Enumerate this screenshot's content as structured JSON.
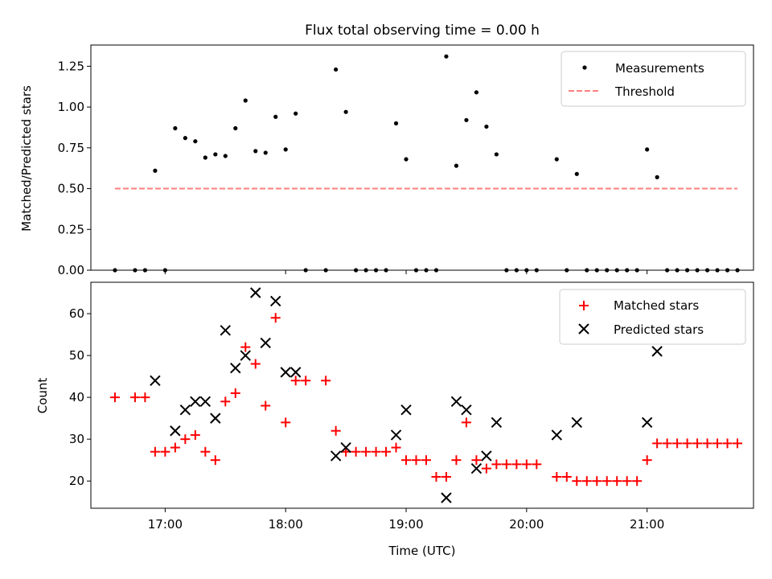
{
  "chart_data": [
    {
      "type": "scatter",
      "title": "Flux total observing time = 0.00 h",
      "xlabel": "",
      "ylabel": "Matched/Predicted stars",
      "xlim": [
        "16:23",
        "21:53"
      ],
      "ylim": [
        0,
        1.38
      ],
      "yticks": [
        0.0,
        0.25,
        0.5,
        0.75,
        1.0,
        1.25
      ],
      "ytick_labels": [
        "0.00",
        "0.25",
        "0.50",
        "0.75",
        "1.00",
        "1.25"
      ],
      "xticks": [
        "17:00",
        "18:00",
        "19:00",
        "20:00",
        "21:00"
      ],
      "legend_position": "top-right",
      "series": [
        {
          "name": "Measurements",
          "color": "#000000",
          "marker": "dot",
          "points": [
            [
              "16:35",
              0
            ],
            [
              "16:45",
              0
            ],
            [
              "16:50",
              0
            ],
            [
              "16:55",
              0.61
            ],
            [
              "17:00",
              0
            ],
            [
              "17:05",
              0.87
            ],
            [
              "17:10",
              0.81
            ],
            [
              "17:15",
              0.79
            ],
            [
              "17:20",
              0.69
            ],
            [
              "17:25",
              0.71
            ],
            [
              "17:30",
              0.7
            ],
            [
              "17:35",
              0.87
            ],
            [
              "17:40",
              1.04
            ],
            [
              "17:45",
              0.73
            ],
            [
              "17:50",
              0.72
            ],
            [
              "17:55",
              0.94
            ],
            [
              "18:00",
              0.74
            ],
            [
              "18:05",
              0.96
            ],
            [
              "18:10",
              0
            ],
            [
              "18:20",
              0
            ],
            [
              "18:25",
              1.23
            ],
            [
              "18:30",
              0.97
            ],
            [
              "18:35",
              0
            ],
            [
              "18:40",
              0
            ],
            [
              "18:45",
              0
            ],
            [
              "18:50",
              0
            ],
            [
              "18:55",
              0.9
            ],
            [
              "19:00",
              0.68
            ],
            [
              "19:05",
              0
            ],
            [
              "19:10",
              0
            ],
            [
              "19:15",
              0
            ],
            [
              "19:20",
              1.31
            ],
            [
              "19:25",
              0.64
            ],
            [
              "19:30",
              0.92
            ],
            [
              "19:35",
              1.09
            ],
            [
              "19:40",
              0.88
            ],
            [
              "19:45",
              0.71
            ],
            [
              "19:50",
              0
            ],
            [
              "19:55",
              0
            ],
            [
              "20:00",
              0
            ],
            [
              "20:05",
              0
            ],
            [
              "20:15",
              0.68
            ],
            [
              "20:20",
              0
            ],
            [
              "20:25",
              0.59
            ],
            [
              "20:30",
              0
            ],
            [
              "20:35",
              0
            ],
            [
              "20:40",
              0
            ],
            [
              "20:45",
              0
            ],
            [
              "20:50",
              0
            ],
            [
              "20:55",
              0
            ],
            [
              "21:00",
              0.74
            ],
            [
              "21:05",
              0.57
            ],
            [
              "21:10",
              0
            ],
            [
              "21:15",
              0
            ],
            [
              "21:20",
              0
            ],
            [
              "21:25",
              0
            ],
            [
              "21:30",
              0
            ],
            [
              "21:35",
              0
            ],
            [
              "21:40",
              0
            ],
            [
              "21:45",
              0
            ]
          ]
        },
        {
          "name": "Threshold",
          "color": "#ff7f7f",
          "marker": "dashed-line",
          "points": [
            [
              "16:35",
              0.5
            ],
            [
              "21:45",
              0.5
            ]
          ]
        }
      ]
    },
    {
      "type": "scatter",
      "title": "",
      "xlabel": "Time (UTC)",
      "ylabel": "Count",
      "xlim": [
        "16:23",
        "21:53"
      ],
      "ylim": [
        13.5,
        67.5
      ],
      "yticks": [
        20,
        30,
        40,
        50,
        60
      ],
      "ytick_labels": [
        "20",
        "30",
        "40",
        "50",
        "60"
      ],
      "xticks": [
        "17:00",
        "18:00",
        "19:00",
        "20:00",
        "21:00"
      ],
      "legend_position": "top-right",
      "series": [
        {
          "name": "Matched stars",
          "color": "#ff0000",
          "marker": "plus",
          "points": [
            [
              "16:35",
              40
            ],
            [
              "16:45",
              40
            ],
            [
              "16:50",
              40
            ],
            [
              "16:55",
              27
            ],
            [
              "17:00",
              27
            ],
            [
              "17:05",
              28
            ],
            [
              "17:10",
              30
            ],
            [
              "17:15",
              31
            ],
            [
              "17:20",
              27
            ],
            [
              "17:25",
              25
            ],
            [
              "17:30",
              39
            ],
            [
              "17:35",
              41
            ],
            [
              "17:40",
              52
            ],
            [
              "17:45",
              48
            ],
            [
              "17:50",
              38
            ],
            [
              "17:55",
              59
            ],
            [
              "18:00",
              34
            ],
            [
              "18:05",
              44
            ],
            [
              "18:10",
              44
            ],
            [
              "18:20",
              44
            ],
            [
              "18:25",
              32
            ],
            [
              "18:30",
              27
            ],
            [
              "18:35",
              27
            ],
            [
              "18:40",
              27
            ],
            [
              "18:45",
              27
            ],
            [
              "18:50",
              27
            ],
            [
              "18:55",
              28
            ],
            [
              "19:00",
              25
            ],
            [
              "19:05",
              25
            ],
            [
              "19:10",
              25
            ],
            [
              "19:15",
              21
            ],
            [
              "19:20",
              21
            ],
            [
              "19:25",
              25
            ],
            [
              "19:30",
              34
            ],
            [
              "19:35",
              25
            ],
            [
              "19:40",
              23
            ],
            [
              "19:45",
              24
            ],
            [
              "19:50",
              24
            ],
            [
              "19:55",
              24
            ],
            [
              "20:00",
              24
            ],
            [
              "20:05",
              24
            ],
            [
              "20:15",
              21
            ],
            [
              "20:20",
              21
            ],
            [
              "20:25",
              20
            ],
            [
              "20:30",
              20
            ],
            [
              "20:35",
              20
            ],
            [
              "20:40",
              20
            ],
            [
              "20:45",
              20
            ],
            [
              "20:50",
              20
            ],
            [
              "20:55",
              20
            ],
            [
              "21:00",
              25
            ],
            [
              "21:05",
              29
            ],
            [
              "21:10",
              29
            ],
            [
              "21:15",
              29
            ],
            [
              "21:20",
              29
            ],
            [
              "21:25",
              29
            ],
            [
              "21:30",
              29
            ],
            [
              "21:35",
              29
            ],
            [
              "21:40",
              29
            ],
            [
              "21:45",
              29
            ]
          ]
        },
        {
          "name": "Predicted stars",
          "color": "#000000",
          "marker": "x",
          "points": [
            [
              "16:55",
              44
            ],
            [
              "17:05",
              32
            ],
            [
              "17:10",
              37
            ],
            [
              "17:15",
              39
            ],
            [
              "17:20",
              39
            ],
            [
              "17:25",
              35
            ],
            [
              "17:30",
              56
            ],
            [
              "17:35",
              47
            ],
            [
              "17:40",
              50
            ],
            [
              "17:45",
              65
            ],
            [
              "17:50",
              53
            ],
            [
              "17:55",
              63
            ],
            [
              "18:00",
              46
            ],
            [
              "18:05",
              46
            ],
            [
              "18:25",
              26
            ],
            [
              "18:30",
              28
            ],
            [
              "18:55",
              31
            ],
            [
              "19:00",
              37
            ],
            [
              "19:20",
              16
            ],
            [
              "19:25",
              39
            ],
            [
              "19:30",
              37
            ],
            [
              "19:35",
              23
            ],
            [
              "19:40",
              26
            ],
            [
              "19:45",
              34
            ],
            [
              "20:15",
              31
            ],
            [
              "20:25",
              34
            ],
            [
              "21:00",
              34
            ],
            [
              "21:05",
              51
            ]
          ]
        }
      ]
    }
  ]
}
